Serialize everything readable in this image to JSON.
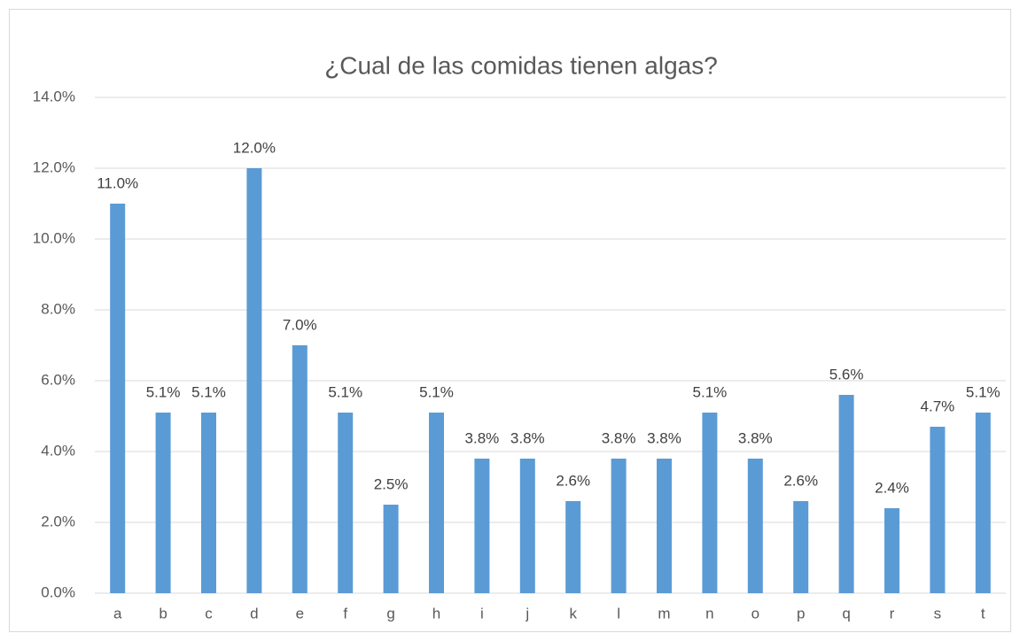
{
  "chart_data": {
    "type": "bar",
    "title": "¿Cual de las comidas tienen algas?",
    "categories": [
      "a",
      "b",
      "c",
      "d",
      "e",
      "f",
      "g",
      "h",
      "i",
      "j",
      "k",
      "l",
      "m",
      "n",
      "o",
      "p",
      "q",
      "r",
      "s",
      "t"
    ],
    "values": [
      11.0,
      5.1,
      5.1,
      12.0,
      7.0,
      5.1,
      2.5,
      5.1,
      3.8,
      3.8,
      2.6,
      3.8,
      3.8,
      5.1,
      3.8,
      2.6,
      5.6,
      2.4,
      4.7,
      5.1
    ],
    "value_labels": [
      "11.0%",
      "5.1%",
      "5.1%",
      "12.0%",
      "7.0%",
      "5.1%",
      "2.5%",
      "5.1%",
      "3.8%",
      "3.8%",
      "2.6%",
      "3.8%",
      "3.8%",
      "5.1%",
      "3.8%",
      "2.6%",
      "5.6%",
      "2.4%",
      "4.7%",
      "5.1%"
    ],
    "color": "#5b9bd5",
    "ylim": [
      0,
      14
    ],
    "yticks": [
      {
        "value": 0,
        "label": "0.0%"
      },
      {
        "value": 2,
        "label": "2.0%"
      },
      {
        "value": 4,
        "label": "4.0%"
      },
      {
        "value": 6,
        "label": "6.0%"
      },
      {
        "value": 8,
        "label": "8.0%"
      },
      {
        "value": 10,
        "label": "10.0%"
      },
      {
        "value": 12,
        "label": "12.0%"
      },
      {
        "value": 14,
        "label": "14.0%"
      }
    ],
    "grid": true
  }
}
